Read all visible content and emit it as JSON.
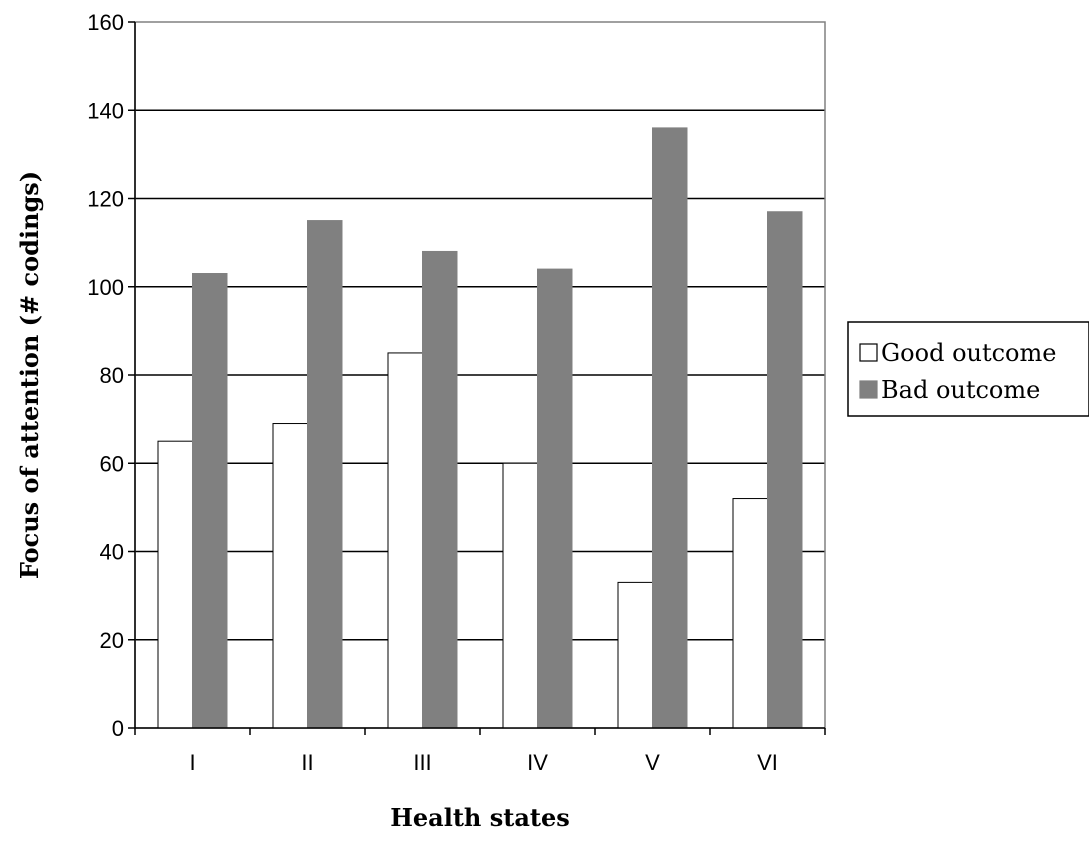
{
  "chart_data": {
    "type": "bar",
    "title": "",
    "xlabel": "Health states",
    "ylabel": "Focus of attention (# codings)",
    "categories": [
      "I",
      "II",
      "III",
      "IV",
      "V",
      "VI"
    ],
    "series": [
      {
        "name": "Good outcome",
        "values": [
          65,
          69,
          85,
          60,
          33,
          52
        ],
        "color": "#ffffff"
      },
      {
        "name": "Bad outcome",
        "values": [
          103,
          115,
          108,
          104,
          136,
          117
        ],
        "color": "#808080"
      }
    ],
    "ylim": [
      0,
      160
    ],
    "yticks": [
      0,
      20,
      40,
      60,
      80,
      100,
      120,
      140,
      160
    ],
    "grid": true,
    "legend_position": "right"
  }
}
